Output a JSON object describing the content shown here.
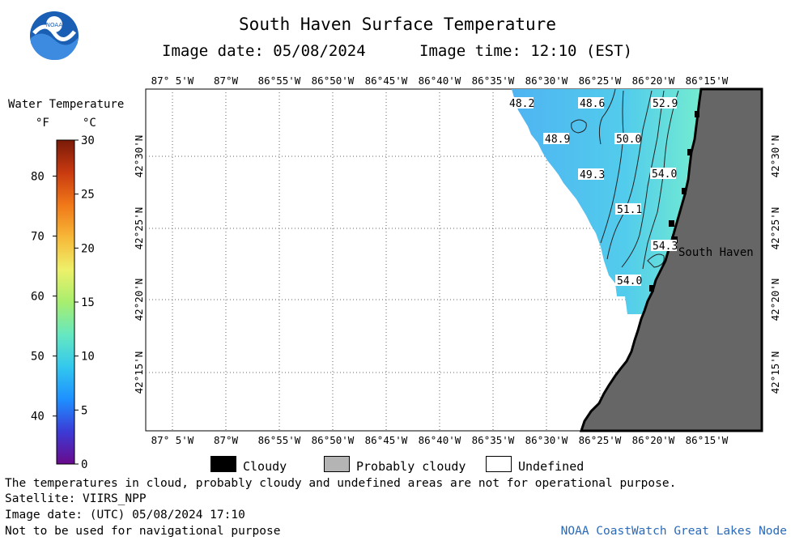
{
  "header": {
    "title": "South Haven Surface Temperature",
    "image_date": "Image date: 05/08/2024",
    "image_time": "Image time: 12:10 (EST)",
    "logo_text": "NOAA"
  },
  "colorbar": {
    "title": "Water Temperature",
    "unit_f": "°F",
    "unit_c": "°C",
    "f_ticks": [
      "80",
      "70",
      "60",
      "50",
      "40"
    ],
    "c_ticks": [
      "30",
      "25",
      "20",
      "15",
      "10",
      "5",
      "0"
    ],
    "colors": [
      "#6a0a8c",
      "#3b3bd6",
      "#1e90ff",
      "#33c8ee",
      "#66e8c0",
      "#a8ee6e",
      "#eef06a",
      "#f7b838",
      "#f07818",
      "#c83a10",
      "#7a1a08"
    ]
  },
  "map": {
    "lon_labels": [
      "87° 5'W",
      "87°W",
      "86°55'W",
      "86°50'W",
      "86°45'W",
      "86°40'W",
      "86°35'W",
      "86°30'W",
      "86°25'W",
      "86°20'W",
      "86°15'W"
    ],
    "lat_labels": [
      "42°30'N",
      "42°25'N",
      "42°20'N",
      "42°15'N"
    ],
    "contour_labels": [
      "48.2",
      "48.6",
      "52.9",
      "48.9",
      "50.0",
      "49.3",
      "54.0",
      "51.1",
      "54.3",
      "54.0"
    ],
    "place_label": "South Haven",
    "land_color": "#666666",
    "water_colors": [
      "#4fb4f2",
      "#4fd0e8",
      "#6fe6d0"
    ]
  },
  "legend": {
    "cloudy": "Cloudy",
    "probably_cloudy": "Probably cloudy",
    "undefined": "Undefined"
  },
  "footer": {
    "line1": "The temperatures in cloud, probably cloudy and undefined areas are not for operational purpose.",
    "line2": "Satellite: VIIRS_NPP",
    "line3": "Image date: (UTC) 05/08/2024  17:10",
    "line4": "Not to be used for navigational purpose",
    "credit": "NOAA CoastWatch Great Lakes Node"
  }
}
